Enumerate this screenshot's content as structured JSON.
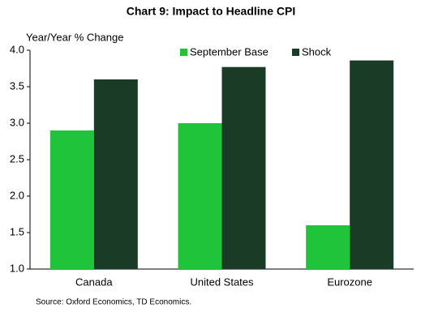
{
  "chart_data": {
    "type": "bar",
    "title": "Chart 9: Impact to Headline  CPI",
    "y_label": "Year/Year % Change",
    "source": "Source:  Oxford Economics,  TD Economics.",
    "categories": [
      "Canada",
      "United States",
      "Eurozone"
    ],
    "series": [
      {
        "name": "September Base",
        "color": "#1fc43a",
        "values": [
          2.9,
          3.0,
          1.6
        ]
      },
      {
        "name": "Shock",
        "color": "#1a3c26",
        "values": [
          3.6,
          3.77,
          3.86
        ]
      }
    ],
    "ylim": [
      1,
      4
    ],
    "yticks": [
      {
        "value": 1,
        "label": "1.0"
      },
      {
        "value": 1.5,
        "label": "1.5"
      },
      {
        "value": 2,
        "label": "2.0"
      },
      {
        "value": 2.5,
        "label": "2.5"
      },
      {
        "value": 3,
        "label": "3.0"
      },
      {
        "value": 3.5,
        "label": "3.5"
      },
      {
        "value": 4,
        "label": "4.0"
      }
    ],
    "grid": false,
    "legend": "top-right"
  }
}
